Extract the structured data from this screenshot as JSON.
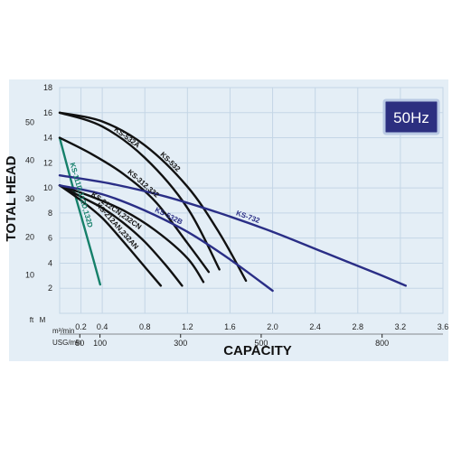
{
  "chart_data": {
    "type": "line",
    "title": "",
    "badge": "50Hz",
    "xlabel": "CAPACITY",
    "ylabel": "TOTAL HEAD",
    "x_unit_primary": "m³/min",
    "x_unit_secondary": "USG/min",
    "y_unit_primary": "M",
    "y_unit_secondary": "ft",
    "xlim": [
      0,
      3.6
    ],
    "ylim": [
      0,
      18
    ],
    "grid": true,
    "legend": "none",
    "x_ticks": [
      "0.2",
      "0.4",
      "0.8",
      "1.2",
      "1.6",
      "2.0",
      "2.4",
      "2.8",
      "3.2",
      "3.6"
    ],
    "x_tick_values": [
      0.2,
      0.4,
      0.8,
      1.2,
      1.6,
      2.0,
      2.4,
      2.8,
      3.2,
      3.6
    ],
    "x2_ticks": [
      "50",
      "100",
      "300",
      "500",
      "800"
    ],
    "x2_tick_values": [
      50,
      100,
      300,
      500,
      800
    ],
    "usg_per_m3min": 264.17,
    "y_ticks": [
      "2",
      "4",
      "6",
      "8",
      "10",
      "12",
      "14",
      "16",
      "18"
    ],
    "y_tick_values": [
      2,
      4,
      6,
      8,
      10,
      12,
      14,
      16,
      18
    ],
    "y2_ticks": [
      "10",
      "20",
      "30",
      "40",
      "50"
    ],
    "y2_tick_values": [
      10,
      20,
      30,
      40,
      50
    ],
    "ft_per_m": 3.2808,
    "colors": {
      "background": "#e4eef6",
      "grid": "#c4d6e6",
      "black_curve": "#111111",
      "blue_curve": "#2a2e86",
      "green_curve": "#15806a",
      "badge_bg": "#2c2f80",
      "badge_border": "#b9c9e4"
    },
    "series": [
      {
        "name": "KS-111D,112D,132D",
        "color": "green",
        "x": [
          0.0,
          0.1,
          0.2,
          0.3,
          0.38
        ],
        "y": [
          14.0,
          10.8,
          7.8,
          4.8,
          2.3
        ]
      },
      {
        "name": "KS-212AN,232AN",
        "color": "black",
        "x": [
          0.0,
          0.2,
          0.4,
          0.6,
          0.8,
          0.95
        ],
        "y": [
          10.2,
          9.0,
          7.6,
          5.7,
          3.7,
          2.2
        ]
      },
      {
        "name": "KS-212CN,232CN",
        "color": "black",
        "x": [
          0.0,
          0.2,
          0.4,
          0.6,
          0.8,
          1.0,
          1.15
        ],
        "y": [
          10.2,
          9.3,
          8.4,
          7.2,
          5.7,
          3.8,
          2.2
        ]
      },
      {
        "name": "",
        "color": "black",
        "x": [
          0.0,
          0.3,
          0.6,
          0.9,
          1.2,
          1.35
        ],
        "y": [
          10.2,
          9.3,
          8.2,
          6.6,
          4.4,
          2.5
        ]
      },
      {
        "name": "KS-312,332",
        "color": "black",
        "x": [
          0.0,
          0.3,
          0.6,
          0.9,
          1.2,
          1.4
        ],
        "y": [
          14.0,
          12.7,
          11.1,
          8.9,
          5.6,
          3.3
        ]
      },
      {
        "name": "KS-532A",
        "color": "black",
        "x": [
          0.0,
          0.4,
          0.8,
          1.2,
          1.5
        ],
        "y": [
          16.0,
          14.9,
          12.4,
          8.4,
          3.5
        ]
      },
      {
        "name": "KS-532",
        "color": "black",
        "x": [
          0.0,
          0.4,
          0.8,
          1.2,
          1.5,
          1.75
        ],
        "y": [
          16.0,
          15.3,
          13.4,
          10.1,
          6.4,
          2.6
        ]
      },
      {
        "name": "KS-732",
        "color": "blue",
        "x": [
          0.0,
          0.5,
          1.0,
          1.5,
          2.0,
          2.5,
          3.0,
          3.25
        ],
        "y": [
          11.0,
          10.3,
          9.3,
          8.0,
          6.5,
          4.8,
          3.1,
          2.2
        ]
      },
      {
        "name": "KS-532B",
        "color": "blue",
        "x": [
          0.0,
          0.4,
          0.8,
          1.2,
          1.6,
          2.0
        ],
        "y": [
          10.2,
          9.5,
          8.2,
          6.5,
          4.3,
          1.8
        ]
      }
    ]
  }
}
